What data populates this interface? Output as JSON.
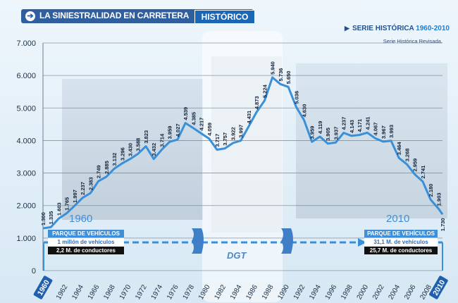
{
  "header": {
    "title": "LA SINIESTRALIDAD EN CARRETERA",
    "tab_label": "HISTÓRICO"
  },
  "serie": {
    "label": "SERIE HISTÓRICA",
    "years": "1960-2010",
    "note": "Serie Histórica Revisada."
  },
  "left_box": {
    "year": "1960",
    "title": "PARQUE DE VEHÍCULOS",
    "vehicles": "1 millón de vehículos",
    "drivers": "2,2 M. de conductores"
  },
  "right_box": {
    "year": "2010",
    "title": "PARQUE DE VEHÍCULOS",
    "vehicles": "31,1 M. de vehículos",
    "drivers": "25,7 M. de conductores"
  },
  "logo": "DGT",
  "colors": {
    "line": "#3a8fd9",
    "header": "#2f5f9f",
    "accent": "#1f7fd0"
  },
  "chart_data": {
    "type": "line",
    "title": "",
    "xlabel": "",
    "ylabel": "",
    "ylim": [
      0,
      7000
    ],
    "grid": true,
    "y_ticks": [
      "0",
      "1.000",
      "2.000",
      "3.000",
      "4.000",
      "5.000",
      "6.000",
      "7.000"
    ],
    "x_tick_labels": [
      "1960",
      "1962",
      "1964",
      "1966",
      "1968",
      "1970",
      "1972",
      "1974",
      "1976",
      "1978",
      "1980",
      "1982",
      "1984",
      "1986",
      "1988",
      "1990",
      "1992",
      "1994",
      "1996",
      "1998",
      "2000",
      "2002",
      "2004",
      "2006",
      "2008",
      "2010"
    ],
    "x": [
      1960,
      1961,
      1962,
      1963,
      1964,
      1965,
      1966,
      1967,
      1968,
      1969,
      1970,
      1971,
      1972,
      1973,
      1974,
      1975,
      1976,
      1977,
      1978,
      1979,
      1980,
      1981,
      1982,
      1983,
      1984,
      1985,
      1986,
      1987,
      1988,
      1989,
      1990,
      1991,
      1992,
      1993,
      1994,
      1995,
      1996,
      1997,
      1998,
      1999,
      2000,
      2001,
      2002,
      2003,
      2004,
      2005,
      2006,
      2007,
      2008,
      2009,
      2010
    ],
    "values": [
      1300,
      1335,
      1603,
      1765,
      1997,
      2237,
      2383,
      2749,
      2885,
      3132,
      3296,
      3430,
      3588,
      3823,
      3432,
      3714,
      3959,
      4027,
      4539,
      4385,
      4217,
      4059,
      3717,
      3757,
      3922,
      3997,
      4431,
      4873,
      5224,
      5940,
      5736,
      5650,
      5036,
      4630,
      3959,
      4119,
      3905,
      3937,
      4237,
      4143,
      4171,
      4241,
      4067,
      3967,
      3993,
      3464,
      3268,
      2959,
      2741,
      2180,
      1903
    ],
    "labels": [
      "1.300",
      "1.335",
      "1.603",
      "1.765",
      "1.997",
      "2.237",
      "2.383",
      "2.749",
      "2.885",
      "3.132",
      "3.296",
      "3.430",
      "3.588",
      "3.823",
      "3.432",
      "3.714",
      "3.959",
      "4.027",
      "4.539",
      "4.385",
      "4.217",
      "4.059",
      "3.717",
      "3.757",
      "3.922",
      "3.997",
      "4.431",
      "4.873",
      "5.224",
      "5.940",
      "5.736",
      "5.650",
      "5.036",
      "4.630",
      "3.959",
      "4.119",
      "3.905",
      "3.937",
      "4.237",
      "4.143",
      "4.171",
      "4.241",
      "4.067",
      "3.967",
      "3.993",
      "3.464",
      "3.268",
      "2.959",
      "2.741",
      "2.180",
      "1.903"
    ],
    "end_point": {
      "year": 2010.5,
      "value": 1730,
      "label": "1.730"
    }
  }
}
